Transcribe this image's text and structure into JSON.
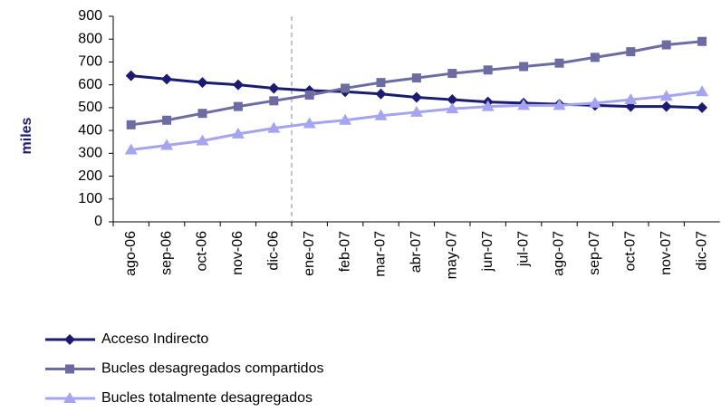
{
  "chart_data": {
    "type": "line",
    "y_label": "miles",
    "categories": [
      "ago-06",
      "sep-06",
      "oct-06",
      "nov-06",
      "dic-06",
      "ene-07",
      "feb-07",
      "mar-07",
      "abr-07",
      "may-07",
      "jun-07",
      "jul-07",
      "ago-07",
      "sep-07",
      "oct-07",
      "nov-07",
      "dic-07"
    ],
    "series": [
      {
        "name": "Acceso Indirecto",
        "color": "#1b1b72",
        "marker": "diamond",
        "values": [
          640,
          625,
          610,
          600,
          585,
          575,
          570,
          560,
          545,
          535,
          525,
          520,
          515,
          510,
          505,
          505,
          500
        ]
      },
      {
        "name": "Bucles desagregados compartidos",
        "color": "#6c6ca2",
        "marker": "square",
        "values": [
          425,
          445,
          475,
          505,
          530,
          555,
          585,
          610,
          630,
          650,
          665,
          680,
          695,
          720,
          745,
          775,
          790
        ]
      },
      {
        "name": "Bucles totalmente desagregados",
        "color": "#a4a4f0",
        "marker": "triangle",
        "values": [
          315,
          335,
          355,
          385,
          410,
          430,
          445,
          465,
          480,
          495,
          505,
          510,
          510,
          520,
          535,
          550,
          570
        ]
      }
    ],
    "ylim": [
      0,
      900
    ],
    "yticks": [
      0,
      100,
      200,
      300,
      400,
      500,
      600,
      700,
      800,
      900
    ],
    "grid": false
  }
}
